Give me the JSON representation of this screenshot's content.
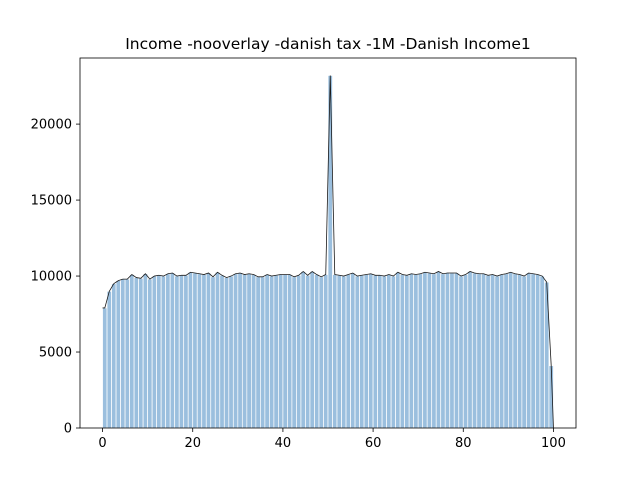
{
  "chart_data": {
    "type": "bar",
    "title": "Income -nooverlay -danish tax -1M -Danish Income1",
    "xlabel": "",
    "ylabel": "",
    "xlim": [
      -5,
      105
    ],
    "ylim": [
      0,
      24350
    ],
    "xticks": [
      0,
      20,
      40,
      60,
      80,
      100
    ],
    "yticks": [
      0,
      5000,
      10000,
      15000,
      20000
    ],
    "grid": false,
    "bin_width": 1,
    "bin_start": 0,
    "values": [
      7900,
      9000,
      9500,
      9700,
      9800,
      9800,
      10100,
      9900,
      9850,
      10150,
      9800,
      10000,
      10050,
      10000,
      10150,
      10200,
      10000,
      10050,
      10050,
      10250,
      10200,
      10150,
      10100,
      10200,
      9950,
      10250,
      10050,
      9900,
      10000,
      10150,
      10200,
      10100,
      10150,
      10100,
      9950,
      9950,
      10100,
      10000,
      10050,
      10100,
      10100,
      10100,
      9950,
      10050,
      10300,
      10050,
      10300,
      10100,
      9950,
      10100,
      23200,
      10100,
      10050,
      10000,
      10100,
      10200,
      10000,
      10050,
      10100,
      10150,
      10050,
      10050,
      10000,
      10100,
      10000,
      10250,
      10100,
      10050,
      10150,
      10100,
      10150,
      10250,
      10200,
      10150,
      10300,
      10150,
      10200,
      10200,
      10200,
      10000,
      10100,
      10300,
      10200,
      10150,
      10150,
      10050,
      10100,
      10000,
      10100,
      10150,
      10250,
      10150,
      10100,
      10000,
      10200,
      10150,
      10100,
      10000,
      9600,
      4100
    ],
    "colors": {
      "bar_fill": "#9bbfde",
      "bar_edge": "#ffffff",
      "kde_line": "#1a1a1a",
      "axes": "#000000"
    }
  }
}
